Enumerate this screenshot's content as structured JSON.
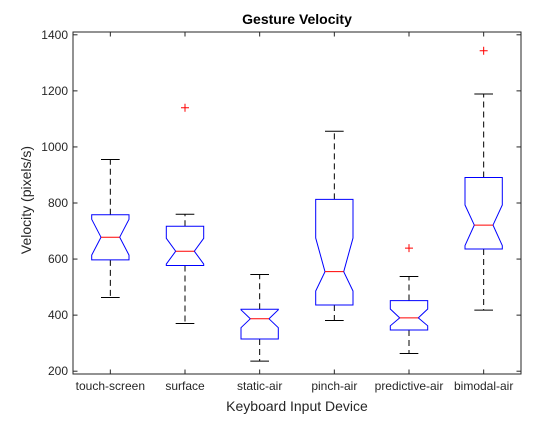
{
  "chart_data": {
    "type": "boxplot",
    "title": "Gesture Velocity",
    "xlabel": "Keyboard Input Device",
    "ylabel": "Velocity (pixels/s)",
    "ylim": [
      190,
      1410
    ],
    "yticks": [
      200,
      400,
      600,
      800,
      1000,
      1200,
      1400
    ],
    "notched": true,
    "grid": false,
    "categories": [
      "touch-screen",
      "surface",
      "static-air",
      "pinch-air",
      "predictive-air",
      "bimodal-air"
    ],
    "boxes": [
      {
        "category": "touch-screen",
        "whisker_low": 463,
        "q1": 597,
        "median": 678,
        "q3": 758,
        "whisker_high": 955,
        "notch_low": 614,
        "notch_high": 742,
        "outliers": []
      },
      {
        "category": "surface",
        "whisker_low": 370,
        "q1": 577,
        "median": 628,
        "q3": 717,
        "whisker_high": 760,
        "notch_low": 582,
        "notch_high": 674,
        "outliers": [
          1140
        ]
      },
      {
        "category": "static-air",
        "whisker_low": 236,
        "q1": 315,
        "median": 387,
        "q3": 421,
        "whisker_high": 545,
        "notch_low": 355,
        "notch_high": 419,
        "outliers": []
      },
      {
        "category": "pinch-air",
        "whisker_low": 381,
        "q1": 436,
        "median": 555,
        "q3": 813,
        "whisker_high": 1056,
        "notch_low": 486,
        "notch_high": 675,
        "outliers": []
      },
      {
        "category": "predictive-air",
        "whisker_low": 263,
        "q1": 347,
        "median": 390,
        "q3": 452,
        "whisker_high": 538,
        "notch_low": 362,
        "notch_high": 422,
        "outliers": [
          639
        ]
      },
      {
        "category": "bimodal-air",
        "whisker_low": 418,
        "q1": 636,
        "median": 721,
        "q3": 891,
        "whisker_high": 1189,
        "notch_low": 648,
        "notch_high": 793,
        "outliers": [
          1343
        ]
      }
    ],
    "colors": {
      "box": "#0000ff",
      "median": "#ff0000",
      "whisker": "#000000",
      "outlier": "#ff0000",
      "axes": "#262626",
      "text": "#262626"
    }
  }
}
